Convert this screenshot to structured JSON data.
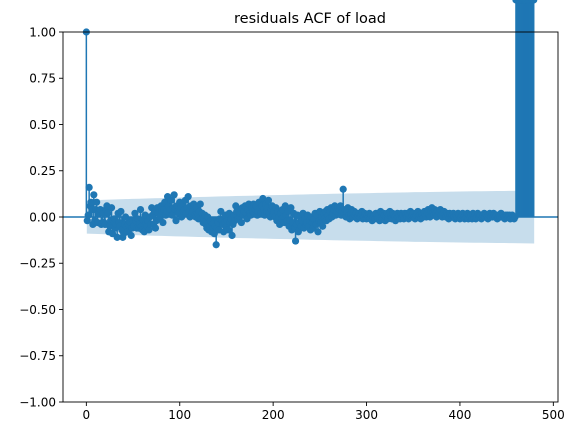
{
  "chart_data": {
    "type": "scatter",
    "subtype": "acf-stem",
    "title": "residuals ACF of load",
    "xlabel": "",
    "ylabel": "",
    "xlim": [
      -25,
      505
    ],
    "ylim": [
      -1.0,
      1.0
    ],
    "xticks": [
      0,
      100,
      200,
      300,
      400,
      500
    ],
    "yticks": [
      -1.0,
      -0.75,
      -0.5,
      -0.25,
      0.0,
      0.25,
      0.5,
      0.75,
      1.0
    ],
    "xtick_labels": [
      "0",
      "100",
      "200",
      "300",
      "400",
      "500"
    ],
    "ytick_labels": [
      "−1.00",
      "−0.75",
      "−0.50",
      "−0.25",
      "0.00",
      "0.25",
      "0.50",
      "0.75",
      "1.00"
    ],
    "grid": false,
    "legend": "none",
    "colors": {
      "series": "#1f77b4",
      "band": "#1f77b4",
      "band_opacity": 0.25
    },
    "confidence_band": {
      "x": [
        1,
        50,
        100,
        150,
        200,
        250,
        300,
        350,
        400,
        450,
        479
      ],
      "half_width": [
        0.09,
        0.098,
        0.105,
        0.112,
        0.118,
        0.124,
        0.129,
        0.134,
        0.138,
        0.141,
        0.143
      ]
    },
    "series": [
      {
        "lags": [
          0,
          1,
          2,
          3,
          4,
          5,
          6,
          7,
          8,
          9,
          10,
          11,
          12,
          13,
          14,
          15,
          16,
          17,
          18,
          19,
          20,
          21,
          22,
          23,
          24,
          25,
          26,
          27,
          28,
          29,
          30,
          31,
          32,
          33,
          34,
          35,
          36,
          37,
          38,
          39,
          40,
          41,
          42,
          43,
          44,
          45,
          46,
          47,
          48,
          49,
          50,
          51,
          52,
          53,
          54,
          55,
          56,
          57,
          58,
          59,
          60,
          61,
          62,
          63,
          64,
          65,
          66,
          67,
          68,
          69,
          70,
          71,
          72,
          73,
          74,
          75,
          76,
          77,
          78,
          79,
          80,
          81,
          82,
          83,
          84,
          85,
          86,
          87,
          88,
          89,
          90,
          91,
          92,
          93,
          94,
          95,
          96,
          97,
          98,
          99,
          100,
          101,
          102,
          103,
          104,
          105,
          106,
          107,
          108,
          109,
          110,
          111,
          112,
          113,
          114,
          115,
          116,
          117,
          118,
          119,
          120,
          121,
          122,
          123,
          124,
          125,
          126,
          127,
          128,
          129,
          130,
          131,
          132,
          133,
          134,
          135,
          136,
          137,
          138,
          139,
          140,
          141,
          142,
          143,
          144,
          145,
          146,
          147,
          148,
          149,
          150,
          151,
          152,
          153,
          154,
          155,
          156,
          157,
          158,
          159,
          160,
          161,
          162,
          163,
          164,
          165,
          166,
          167,
          168,
          169,
          170,
          171,
          172,
          173,
          174,
          175,
          176,
          177,
          178,
          179,
          180,
          181,
          182,
          183,
          184,
          185,
          186,
          187,
          188,
          189,
          190,
          191,
          192,
          193,
          194,
          195,
          196,
          197,
          198,
          199,
          200,
          201,
          202,
          203,
          204,
          205,
          206,
          207,
          208,
          209,
          210,
          211,
          212,
          213,
          214,
          215,
          216,
          217,
          218,
          219,
          220,
          221,
          222,
          223,
          224,
          225,
          226,
          227,
          228,
          229,
          230,
          231,
          232,
          233,
          234,
          235,
          236,
          237,
          238,
          239,
          240,
          241,
          242,
          243,
          244,
          245,
          246,
          247,
          248,
          249,
          250,
          251,
          252,
          253,
          254,
          255,
          256,
          257,
          258,
          259,
          260,
          261,
          262,
          263,
          264,
          265,
          266,
          267,
          268,
          269,
          270,
          271,
          272,
          273,
          274,
          275,
          276,
          277,
          278,
          279,
          280,
          281,
          282,
          283,
          284,
          285,
          286,
          287,
          288,
          289,
          290,
          291,
          292,
          293,
          294,
          295,
          296,
          297,
          298,
          299,
          300,
          301,
          302,
          303,
          304,
          305,
          306,
          307,
          308,
          309,
          310,
          311,
          312,
          313,
          314,
          315,
          316,
          317,
          318,
          319,
          320,
          321,
          322,
          323,
          324,
          325,
          326,
          327,
          328,
          329,
          330,
          331,
          332,
          333,
          334,
          335,
          336,
          337,
          338,
          339,
          340,
          341,
          342,
          343,
          344,
          345,
          346,
          347,
          348,
          349,
          350,
          351,
          352,
          353,
          354,
          355,
          356,
          357,
          358,
          359,
          360,
          361,
          362,
          363,
          364,
          365,
          366,
          367,
          368,
          369,
          370,
          371,
          372,
          373,
          374,
          375,
          376,
          377,
          378,
          379,
          380,
          381,
          382,
          383,
          384,
          385,
          386,
          387,
          388,
          389,
          390,
          391,
          392,
          393,
          394,
          395,
          396,
          397,
          398,
          399,
          400,
          401,
          402,
          403,
          404,
          405,
          406,
          407,
          408,
          409,
          410,
          411,
          412,
          413,
          414,
          415,
          416,
          417,
          418,
          419,
          420,
          421,
          422,
          423,
          424,
          425,
          426,
          427,
          428,
          429,
          430,
          431,
          432,
          433,
          434,
          435,
          436,
          437,
          438,
          439,
          440,
          441,
          442,
          443,
          444,
          445,
          446,
          447,
          448,
          449,
          450,
          451,
          452,
          453,
          454,
          455,
          456,
          457,
          458,
          459,
          460,
          461,
          462,
          463,
          464,
          465,
          466,
          467,
          468,
          469,
          470,
          471,
          472,
          473,
          474,
          475,
          476,
          477,
          478,
          479
        ],
        "acf": [
          1.0,
          -0.02,
          0.01,
          0.16,
          0.06,
          0.08,
          0.04,
          -0.04,
          0.12,
          -0.02,
          0.04,
          0.08,
          -0.03,
          0.02,
          0.03,
          0.04,
          -0.04,
          -0.03,
          0.02,
          -0.03,
          -0.04,
          0.04,
          0.06,
          0.02,
          -0.08,
          -0.05,
          -0.02,
          0.05,
          -0.09,
          -0.02,
          -0.01,
          -0.06,
          -0.04,
          -0.11,
          0.02,
          -0.03,
          -0.05,
          0.03,
          -0.07,
          -0.11,
          -0.09,
          -0.04,
          0.0,
          -0.05,
          -0.08,
          -0.04,
          -0.02,
          -0.03,
          -0.1,
          -0.06,
          -0.02,
          -0.05,
          0.02,
          -0.02,
          -0.06,
          -0.01,
          -0.06,
          -0.04,
          0.04,
          -0.05,
          -0.07,
          -0.02,
          -0.08,
          0.01,
          -0.03,
          -0.05,
          -0.02,
          -0.07,
          0.0,
          -0.04,
          0.05,
          0.01,
          -0.04,
          0.03,
          -0.06,
          -0.02,
          0.05,
          0.02,
          -0.01,
          0.0,
          0.06,
          0.03,
          -0.03,
          0.04,
          0.08,
          0.01,
          0.03,
          0.11,
          0.06,
          0.02,
          0.04,
          0.09,
          0.01,
          0.05,
          0.12,
          0.04,
          -0.02,
          0.06,
          0.03,
          0.02,
          0.08,
          0.05,
          0.0,
          0.07,
          0.03,
          0.04,
          0.09,
          0.02,
          0.05,
          0.11,
          0.03,
          0.0,
          0.06,
          0.02,
          0.03,
          0.07,
          0.01,
          0.0,
          0.05,
          0.02,
          -0.01,
          0.03,
          0.07,
          -0.01,
          0.02,
          -0.03,
          -0.01,
          0.01,
          -0.04,
          -0.06,
          0.0,
          -0.07,
          -0.05,
          -0.02,
          -0.08,
          -0.04,
          -0.06,
          -0.09,
          -0.05,
          -0.15,
          -0.06,
          -0.03,
          -0.07,
          -0.01,
          0.03,
          -0.02,
          -0.04,
          -0.08,
          -0.03,
          0.01,
          -0.05,
          -0.02,
          -0.07,
          0.02,
          -0.03,
          -0.01,
          -0.1,
          -0.04,
          0.01,
          -0.02,
          0.06,
          0.03,
          -0.01,
          0.04,
          0.0,
          0.02,
          -0.03,
          0.05,
          0.01,
          0.03,
          0.06,
          0.02,
          -0.01,
          0.04,
          0.07,
          0.02,
          0.01,
          0.05,
          0.03,
          0.07,
          0.02,
          0.04,
          0.06,
          0.01,
          0.03,
          0.08,
          0.05,
          0.02,
          0.06,
          0.1,
          0.04,
          0.01,
          0.07,
          0.03,
          0.05,
          0.09,
          0.02,
          0.0,
          0.04,
          0.06,
          0.01,
          0.03,
          0.0,
          0.05,
          -0.02,
          0.03,
          0.0,
          -0.04,
          0.02,
          -0.01,
          0.04,
          0.0,
          -0.03,
          0.06,
          0.01,
          -0.02,
          0.03,
          -0.05,
          -0.02,
          0.05,
          -0.07,
          -0.03,
          0.02,
          -0.06,
          -0.13,
          -0.04,
          0.01,
          -0.08,
          -0.03,
          0.0,
          -0.05,
          -0.02,
          0.02,
          -0.06,
          -0.01,
          -0.04,
          -0.03,
          0.01,
          -0.05,
          -0.02,
          -0.07,
          0.0,
          -0.03,
          -0.06,
          -0.01,
          0.02,
          -0.04,
          0.01,
          -0.08,
          -0.02,
          0.03,
          -0.03,
          0.0,
          -0.05,
          0.02,
          -0.01,
          0.03,
          -0.02,
          0.04,
          0.01,
          -0.01,
          0.03,
          0.05,
          0.0,
          0.02,
          0.04,
          0.06,
          0.01,
          0.03,
          0.05,
          0.02,
          0.04,
          0.06,
          0.01,
          0.03,
          0.15,
          0.02,
          0.04,
          0.0,
          0.03,
          0.05,
          0.01,
          -0.01,
          0.02,
          0.04,
          0.0,
          0.02,
          0.03,
          0.01,
          0.02,
          -0.01,
          0.01,
          0.02,
          0.0,
          0.01,
          0.03,
          -0.01,
          0.0,
          0.02,
          0.01,
          -0.01,
          0.01,
          0.0,
          0.02,
          -0.01,
          0.01,
          -0.02,
          0.0,
          0.01,
          -0.01,
          0.02,
          0.0,
          -0.01,
          0.01,
          -0.02,
          0.03,
          0.0,
          -0.01,
          0.02,
          0.01,
          -0.02,
          0.0,
          0.02,
          -0.01,
          0.01,
          0.03,
          0.0,
          -0.01,
          0.02,
          0.01,
          0.0,
          -0.02,
          0.01,
          0.02,
          0.0,
          0.01,
          -0.01,
          0.02,
          0.0,
          0.01,
          -0.01,
          0.02,
          0.01,
          0.0,
          0.02,
          -0.01,
          0.01,
          0.03,
          0.0,
          0.01,
          0.02,
          0.0,
          -0.01,
          0.01,
          0.02,
          0.03,
          0.0,
          0.01,
          -0.01,
          0.02,
          0.01,
          0.0,
          0.03,
          0.01,
          0.0,
          0.02,
          0.04,
          0.01,
          0.0,
          0.03,
          0.05,
          0.02,
          0.01,
          0.04,
          0.02,
          0.0,
          0.03,
          0.01,
          0.02,
          0.04,
          0.01,
          0.0,
          0.02,
          0.03,
          0.01,
          0.0,
          0.02,
          0.01,
          -0.01,
          0.02,
          0.01,
          0.0,
          0.01,
          0.02,
          0.0,
          -0.01,
          0.01,
          0.0,
          0.02,
          0.01,
          -0.01,
          0.0,
          0.01,
          0.02,
          0.0,
          -0.01,
          0.01,
          0.0,
          0.02,
          -0.01,
          0.01,
          0.0,
          0.01,
          -0.01,
          0.02,
          0.0,
          0.01,
          -0.01,
          0.0,
          0.02,
          0.01,
          0.0,
          0.01,
          -0.01,
          0.0,
          0.01,
          0.02,
          0.0,
          0.01,
          0.0,
          -0.01,
          0.01,
          0.02,
          0.0,
          0.01,
          0.0,
          0.02,
          0.01,
          0.0,
          0.01,
          -0.01,
          0.0,
          0.01,
          0.0,
          0.02,
          0.0,
          0.01,
          0.0,
          -0.01,
          0.01,
          0.0,
          0.01,
          0.0,
          0.01,
          -0.01,
          0.0,
          0.01,
          0.0,
          -0.01,
          0.0
        ]
      }
    ]
  }
}
